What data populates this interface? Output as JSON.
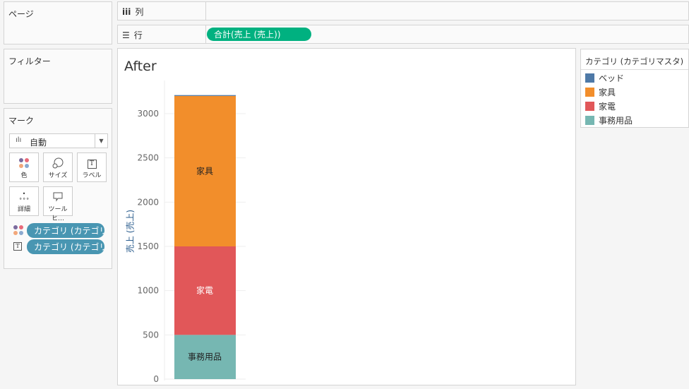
{
  "pages": {
    "title": "ページ"
  },
  "filters": {
    "title": "フィルター"
  },
  "marks": {
    "title": "マーク",
    "type": "自動",
    "buttons": [
      {
        "label": "色",
        "icon": "color-icon"
      },
      {
        "label": "サイズ",
        "icon": "size-icon"
      },
      {
        "label": "ラベル",
        "icon": "label-icon"
      },
      {
        "label": "詳細",
        "icon": "detail-icon"
      },
      {
        "label": "ツールヒ…",
        "icon": "tooltip-icon"
      }
    ],
    "pills": [
      {
        "label": "カテゴリ (カテゴリ..",
        "icon": "color-icon"
      },
      {
        "label": "カテゴリ (カテゴリ..",
        "icon": "label-icon"
      }
    ]
  },
  "columns": {
    "label": "列"
  },
  "rows": {
    "label": "行",
    "pill": "合計(売上 (売上))"
  },
  "legend": {
    "title": "カテゴリ (カテゴリマスタ)",
    "items": [
      {
        "label": "ベッド",
        "color": "#4e79a7"
      },
      {
        "label": "家具",
        "color": "#f28e2b"
      },
      {
        "label": "家電",
        "color": "#e15759"
      },
      {
        "label": "事務用品",
        "color": "#76b7b2"
      }
    ]
  },
  "chart_data": {
    "type": "bar",
    "stacked": true,
    "title": "After",
    "ylabel": "売上 (売上)",
    "ylim": [
      0,
      3250
    ],
    "yticks": [
      "0",
      "500",
      "1000",
      "1500",
      "2000",
      "2500",
      "3000"
    ],
    "series": [
      {
        "name": "事務用品",
        "values": [
          500
        ],
        "color": "#76b7b2",
        "label": "事務用品"
      },
      {
        "name": "家電",
        "values": [
          1000
        ],
        "color": "#e15759",
        "label": "家電"
      },
      {
        "name": "家具",
        "values": [
          1700
        ],
        "color": "#f28e2b",
        "label": "家具"
      },
      {
        "name": "ベッド",
        "values": [
          10
        ],
        "color": "#4e79a7",
        "label": ""
      }
    ]
  }
}
